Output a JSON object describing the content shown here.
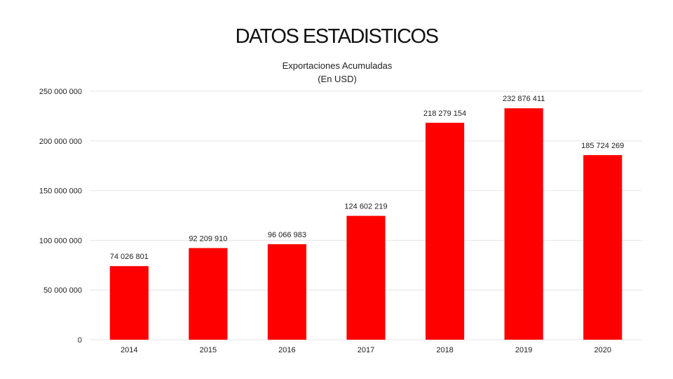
{
  "slide": {
    "title": "DATOS ESTADISTICOS"
  },
  "colors": {
    "bar": "#ff0000",
    "grid": "#e4e4e4",
    "text": "#222222"
  },
  "chart_data": {
    "type": "bar",
    "title_lines": [
      "Exportaciones Acumuladas",
      "(En USD)"
    ],
    "xlabel": "",
    "ylabel": "",
    "categories": [
      "2014",
      "2015",
      "2016",
      "2017",
      "2018",
      "2019",
      "2020"
    ],
    "values": [
      74026801,
      92209910,
      96066983,
      124602219,
      218279154,
      232876411,
      185724269
    ],
    "value_labels": [
      "74 026 801",
      "92 209 910",
      "96 066 983",
      "124 602 219",
      "218 279 154",
      "232 876 411",
      "185 724 269"
    ],
    "ylim": [
      0,
      250000000
    ],
    "yticks": [
      0,
      50000000,
      100000000,
      150000000,
      200000000,
      250000000
    ],
    "ytick_labels": [
      "0",
      "50 000 000",
      "100 000 000",
      "150 000 000",
      "200 000 000",
      "250 000 000"
    ],
    "grid": true,
    "legend": "none"
  }
}
